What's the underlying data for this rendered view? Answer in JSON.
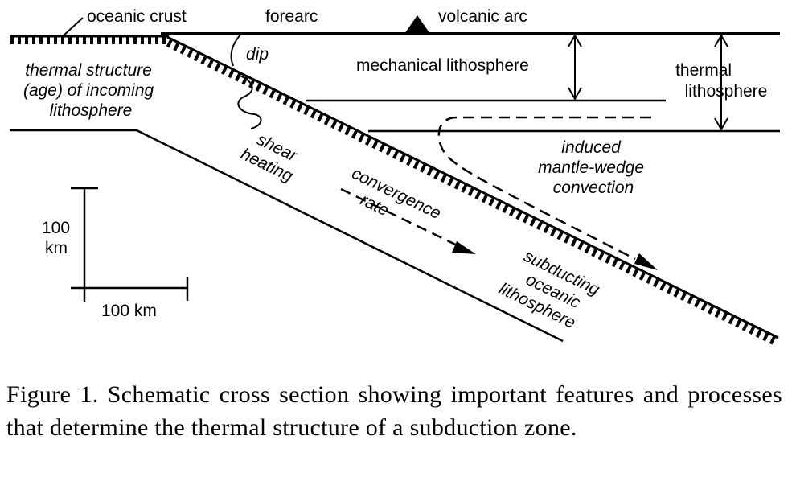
{
  "labels": {
    "oceanic_crust": "oceanic crust",
    "forearc": "forearc",
    "volcanic_arc": "volcanic arc",
    "dip": "dip",
    "mechanical_lithosphere": "mechanical lithosphere",
    "thermal_lithosphere": [
      "thermal",
      "lithosphere"
    ],
    "incoming_lithosphere": [
      "thermal structure",
      "(age) of incoming",
      "lithosphere"
    ],
    "shear_heating": [
      "shear",
      "heating"
    ],
    "convergence_rate": [
      "convergence",
      "rate"
    ],
    "mantle_wedge": [
      "induced",
      "mantle-wedge",
      "convection"
    ],
    "subducting": [
      "subducting",
      "oceanic",
      "lithosphere"
    ],
    "scale_vertical": [
      "100",
      "km"
    ],
    "scale_horizontal": "100 km"
  },
  "caption": "Figure 1.  Schematic cross section showing important features and processes that determine the thermal structure of a subduction zone."
}
